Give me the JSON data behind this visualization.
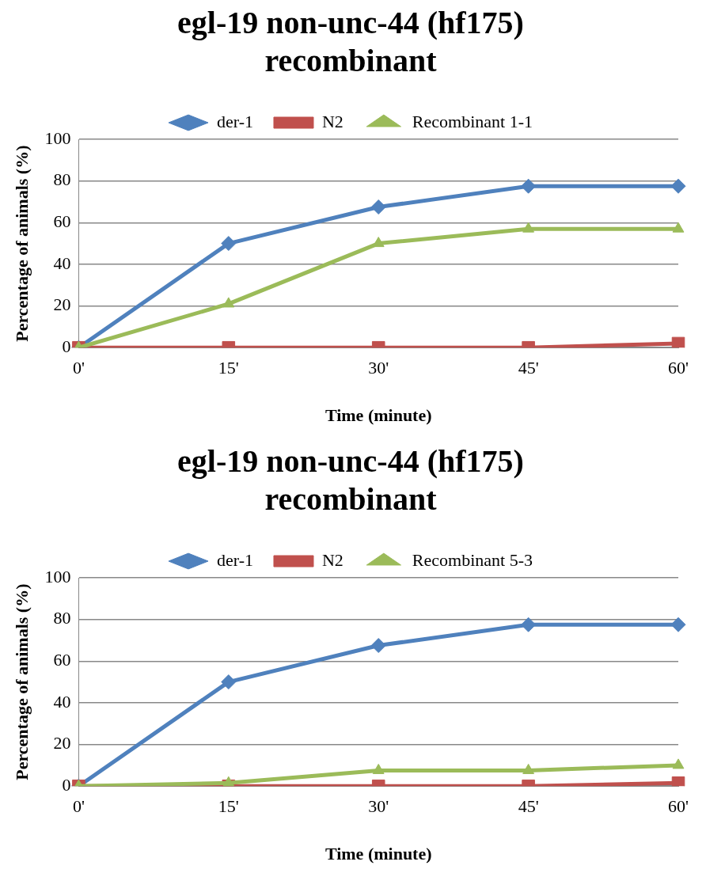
{
  "chart_data": [
    {
      "type": "line",
      "title": [
        "egl-19 non-unc-44 (hf175)",
        "recombinant"
      ],
      "xlabel": "Time (minute)",
      "ylabel": "Percentage of animals (%)",
      "categories": [
        "0'",
        "15'",
        "30'",
        "45'",
        "60'"
      ],
      "ylim": [
        0,
        100
      ],
      "yticks": [
        0,
        20,
        40,
        60,
        80,
        100
      ],
      "grid": "y",
      "legend": "top",
      "series": [
        {
          "name": "der-1",
          "color": "#4f81bd",
          "marker": "diamond",
          "values": [
            0,
            50,
            67.5,
            77.5,
            77.5
          ]
        },
        {
          "name": "N2",
          "color": "#c0504d",
          "marker": "square",
          "values": [
            0,
            0,
            0,
            0,
            2
          ]
        },
        {
          "name": "Recombinant 1-1",
          "color": "#9bbb59",
          "marker": "triangle",
          "values": [
            0,
            21,
            50,
            57,
            57
          ]
        }
      ]
    },
    {
      "type": "line",
      "title": [
        "egl-19 non-unc-44 (hf175)",
        "recombinant"
      ],
      "xlabel": "Time (minute)",
      "ylabel": "Percentage of animals (%)",
      "categories": [
        "0'",
        "15'",
        "30'",
        "45'",
        "60'"
      ],
      "ylim": [
        0,
        100
      ],
      "yticks": [
        0,
        20,
        40,
        60,
        80,
        100
      ],
      "grid": "y",
      "legend": "top",
      "series": [
        {
          "name": "der-1",
          "color": "#4f81bd",
          "marker": "diamond",
          "values": [
            0,
            50,
            67.5,
            77.5,
            77.5
          ]
        },
        {
          "name": "N2",
          "color": "#c0504d",
          "marker": "square",
          "values": [
            0,
            0,
            0,
            0,
            1.5
          ]
        },
        {
          "name": "Recombinant 5-3",
          "color": "#9bbb59",
          "marker": "triangle",
          "values": [
            0,
            1.5,
            7.5,
            7.5,
            10
          ]
        }
      ]
    }
  ]
}
